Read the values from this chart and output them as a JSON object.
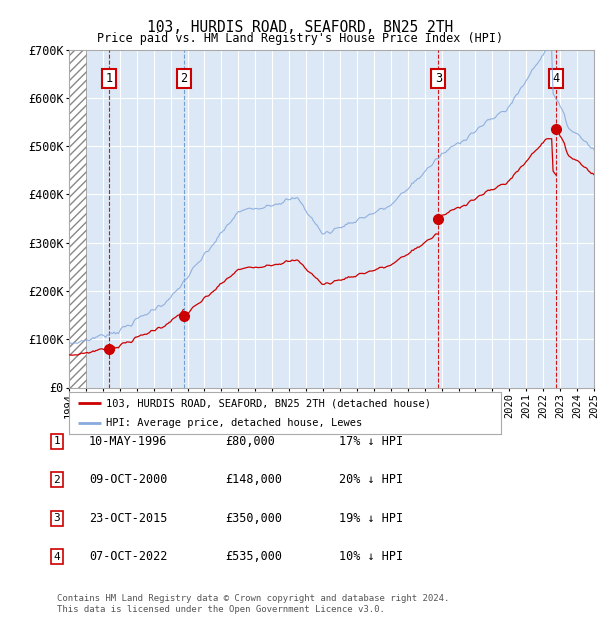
{
  "title": "103, HURDIS ROAD, SEAFORD, BN25 2TH",
  "subtitle": "Price paid vs. HM Land Registry's House Price Index (HPI)",
  "transactions": [
    {
      "num": 1,
      "date": "10-MAY-1996",
      "year": 1996.36,
      "price": 80000,
      "vline_style": "red"
    },
    {
      "num": 2,
      "date": "09-OCT-2000",
      "year": 2000.77,
      "price": 148000,
      "vline_style": "blue"
    },
    {
      "num": 3,
      "date": "23-OCT-2015",
      "year": 2015.81,
      "price": 350000,
      "vline_style": "red"
    },
    {
      "num": 4,
      "date": "07-OCT-2022",
      "year": 2022.77,
      "price": 535000,
      "vline_style": "red"
    }
  ],
  "hpi_label": "HPI: Average price, detached house, Lewes",
  "property_label": "103, HURDIS ROAD, SEAFORD, BN25 2TH (detached house)",
  "sale_color": "#cc0000",
  "hpi_color": "#88aadd",
  "vline_red": "#cc0000",
  "vline_blue": "#6699cc",
  "box_color": "#cc0000",
  "footer": "Contains HM Land Registry data © Crown copyright and database right 2024.\nThis data is licensed under the Open Government Licence v3.0.",
  "table_rows": [
    [
      1,
      "10-MAY-1996",
      "£80,000",
      "17% ↓ HPI"
    ],
    [
      2,
      "09-OCT-2000",
      "£148,000",
      "20% ↓ HPI"
    ],
    [
      3,
      "23-OCT-2015",
      "£350,000",
      "19% ↓ HPI"
    ],
    [
      4,
      "07-OCT-2022",
      "£535,000",
      "10% ↓ HPI"
    ]
  ],
  "xmin": 1994,
  "xmax": 2025,
  "ymin": 0,
  "ymax": 700000,
  "yticks": [
    0,
    100000,
    200000,
    300000,
    400000,
    500000,
    600000,
    700000
  ],
  "ytick_labels": [
    "£0",
    "£100K",
    "£200K",
    "£300K",
    "£400K",
    "£500K",
    "£600K",
    "£700K"
  ],
  "hatch_xmax": 1995.0,
  "background_color": "#ffffff",
  "plot_bg": "#dce8f5"
}
